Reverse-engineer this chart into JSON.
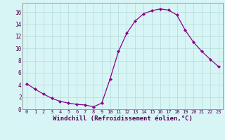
{
  "x": [
    0,
    1,
    2,
    3,
    4,
    5,
    6,
    7,
    8,
    9,
    10,
    11,
    12,
    13,
    14,
    15,
    16,
    17,
    18,
    19,
    20,
    21,
    22,
    23
  ],
  "y": [
    4.2,
    3.3,
    2.5,
    1.8,
    1.3,
    1.0,
    0.8,
    0.7,
    0.4,
    1.0,
    5.0,
    9.5,
    12.5,
    14.5,
    15.7,
    16.2,
    16.5,
    16.3,
    15.5,
    13.0,
    11.0,
    9.5,
    8.2,
    7.0
  ],
  "line_color": "#8B008B",
  "marker": "D",
  "marker_size": 2.2,
  "bg_color": "#d8f5f5",
  "grid_color": "#b8dede",
  "xlabel": "Windchill (Refroidissement éolien,°C)",
  "xlabel_fontsize": 6.5,
  "xtick_labels": [
    "0",
    "1",
    "2",
    "3",
    "4",
    "5",
    "6",
    "7",
    "8",
    "9",
    "10",
    "11",
    "12",
    "13",
    "14",
    "15",
    "16",
    "17",
    "18",
    "19",
    "20",
    "21",
    "22",
    "23"
  ],
  "ytick_labels": [
    "0",
    "2",
    "4",
    "6",
    "8",
    "10",
    "12",
    "14",
    "16"
  ],
  "ytick_values": [
    0,
    2,
    4,
    6,
    8,
    10,
    12,
    14,
    16
  ],
  "xlim": [
    -0.5,
    23.5
  ],
  "ylim": [
    0,
    17.5
  ]
}
